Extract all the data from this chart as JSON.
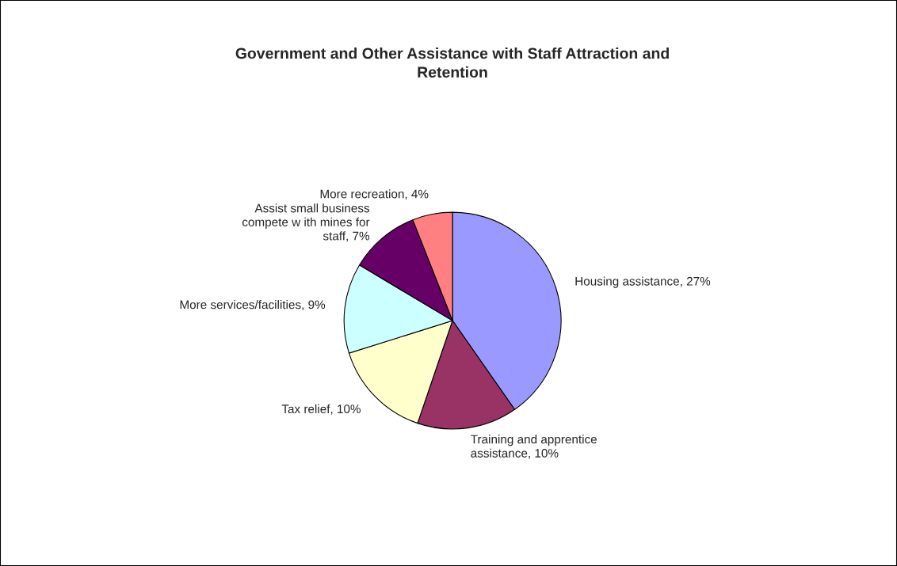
{
  "chart_data": {
    "type": "pie",
    "title": "Government and Other Assistance with Staff Attraction and\nRetention",
    "categories": [
      "Housing assistance",
      "Training and apprentice\nassistance",
      "Tax relief",
      "More services/facilities",
      "Assist small business\ncompete w ith mines for\nstaff",
      "More recreation"
    ],
    "values": [
      27,
      10,
      10,
      9,
      7,
      4
    ],
    "value_labels": [
      "27%",
      "10%",
      "10%",
      "9%",
      "7%",
      "4%"
    ],
    "colors": [
      "#9999ff",
      "#993366",
      "#ffffcc",
      "#ccffff",
      "#660066",
      "#ff8080"
    ]
  }
}
